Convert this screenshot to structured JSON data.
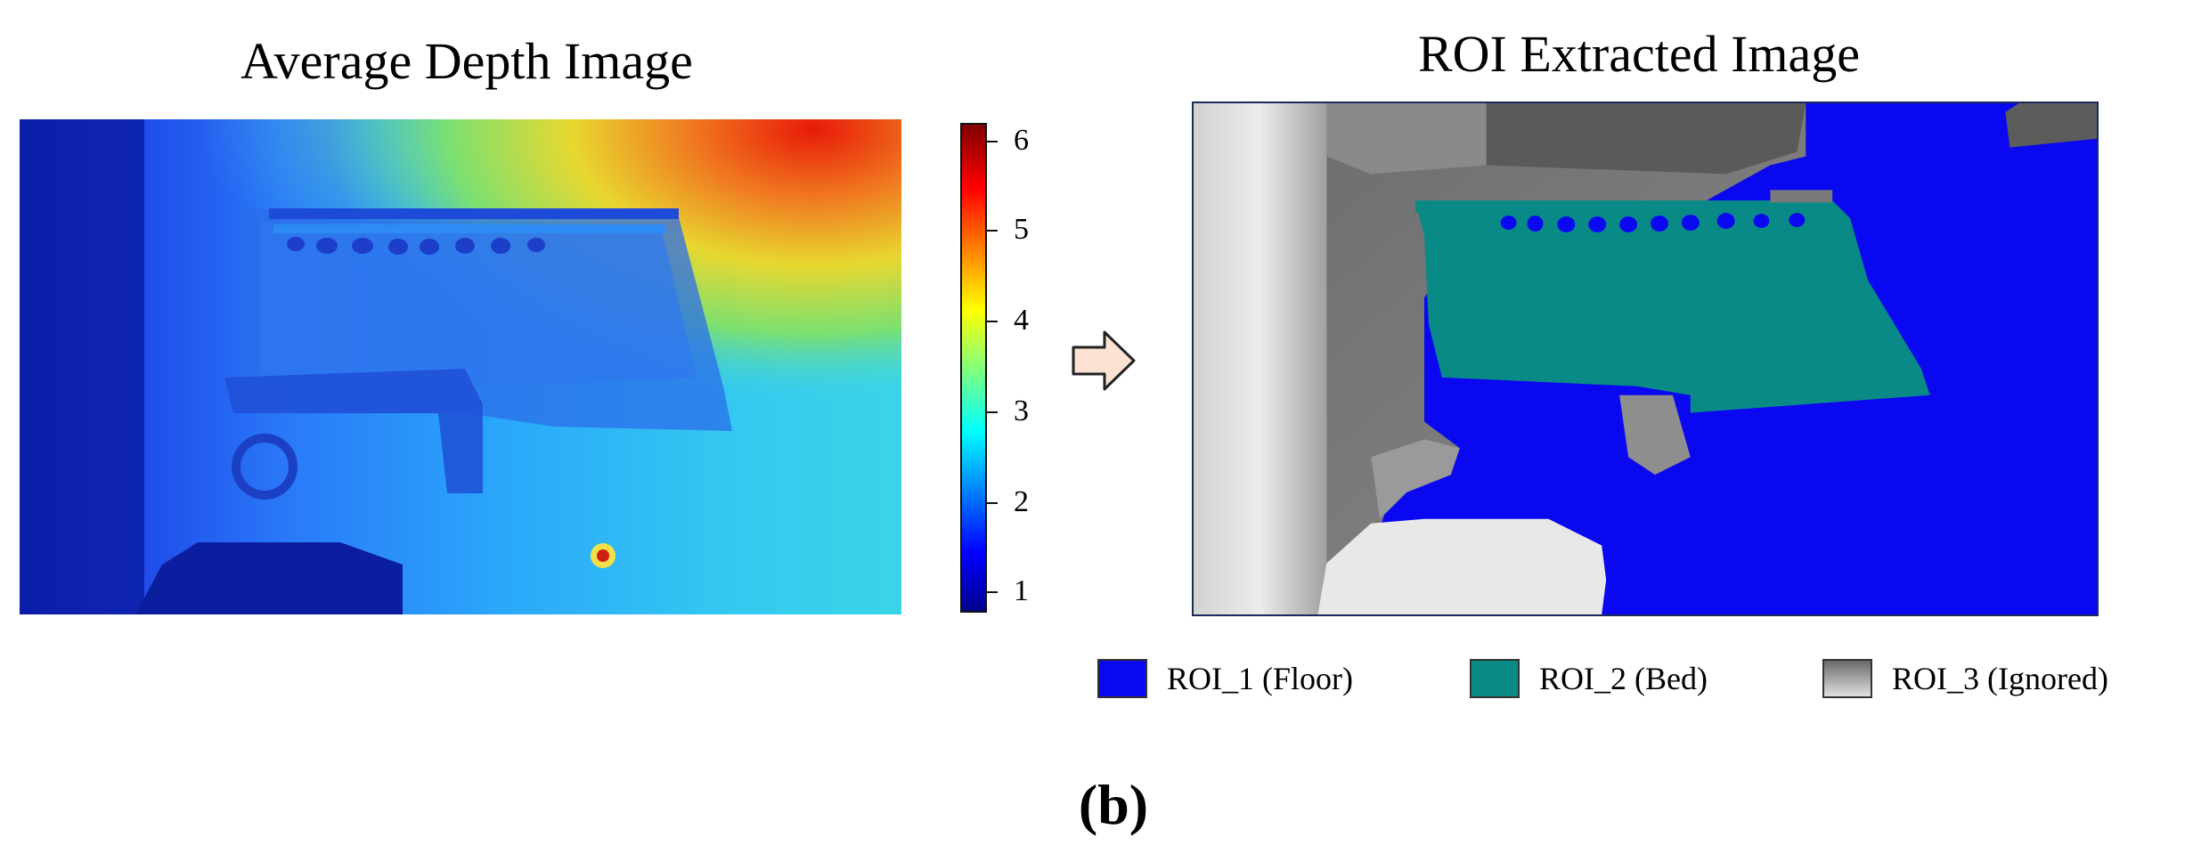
{
  "left_panel": {
    "title": "Average Depth Image"
  },
  "colorbar": {
    "ticks": [
      "6",
      "5",
      "4",
      "3",
      "2",
      "1"
    ],
    "colormap": "jet",
    "range": [
      0.85,
      6.3
    ]
  },
  "arrow_icon": "right-arrow-icon",
  "right_panel": {
    "title": "ROI Extracted Image"
  },
  "legend": [
    {
      "label": "ROI_1 (Floor)",
      "color": "#0a08f0"
    },
    {
      "label": "ROI_2 (Bed)",
      "color": "#0a8a86"
    },
    {
      "label": "ROI_3 (Ignored)",
      "color": "#8c8c8c"
    }
  ],
  "caption": "(b)"
}
